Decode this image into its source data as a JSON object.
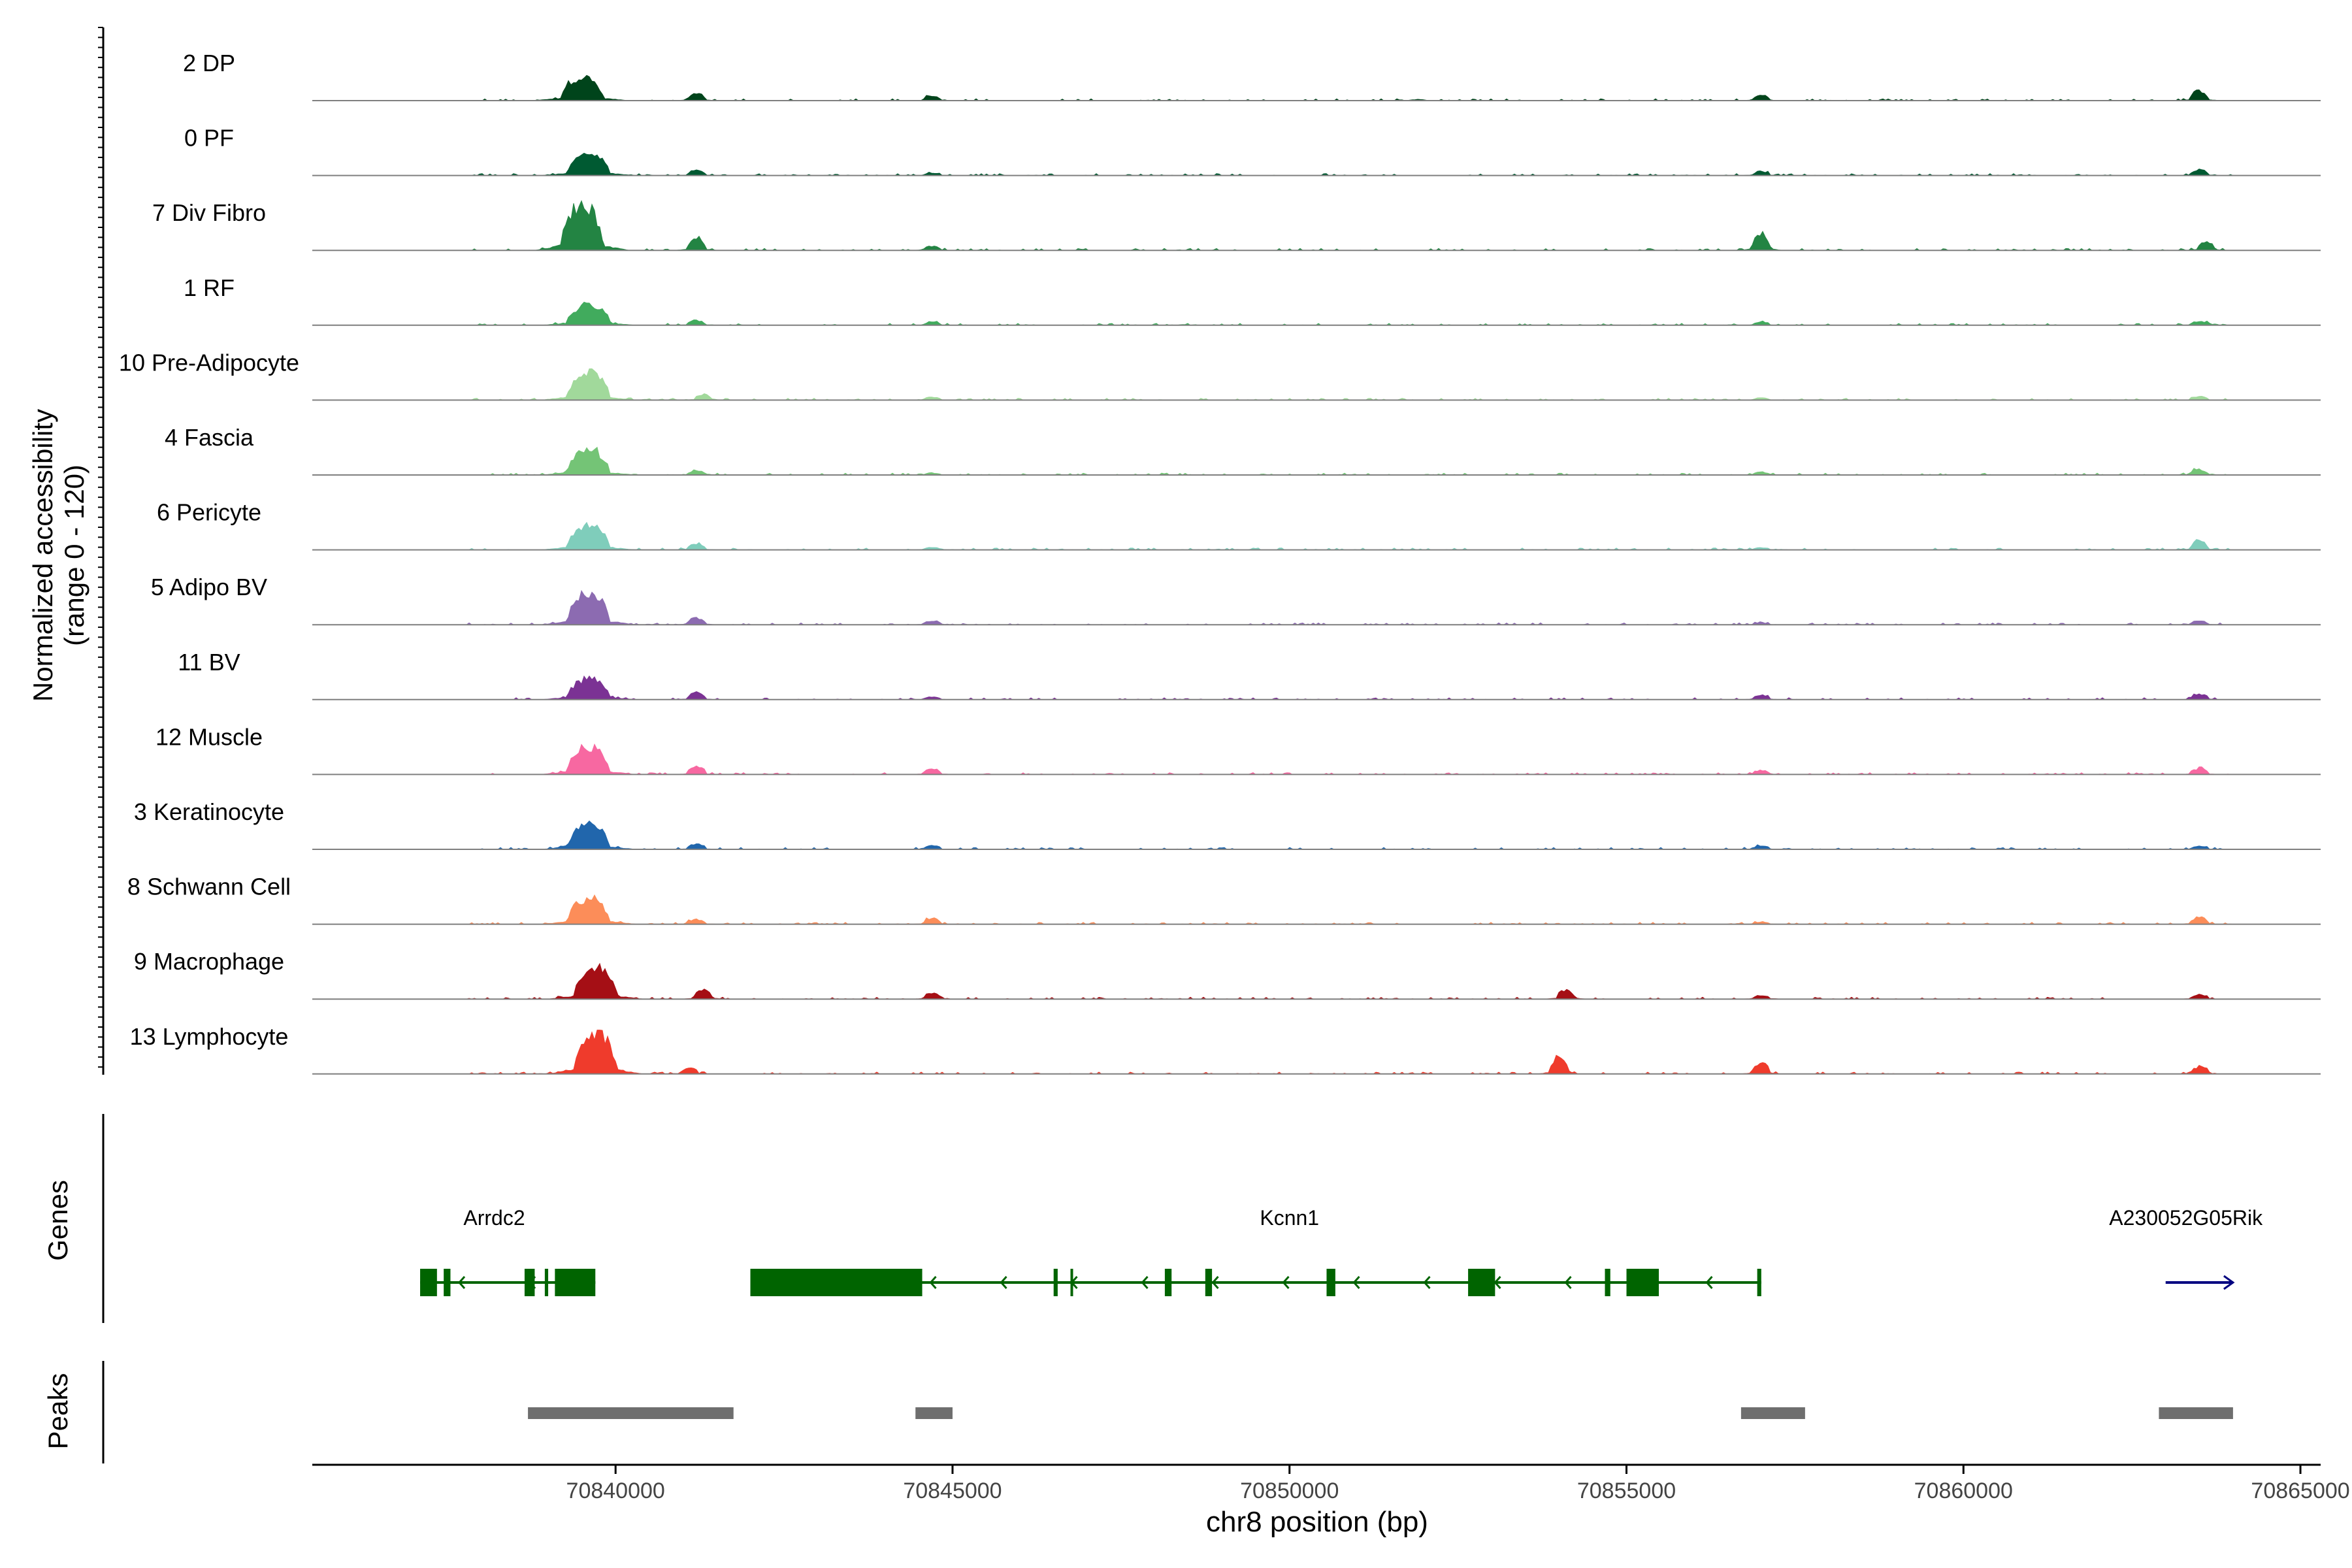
{
  "chart_data": {
    "type": "area",
    "chromosome": "chr8",
    "xlim": [
      70835500,
      70865300
    ],
    "x_ticks": [
      70840000,
      70845000,
      70850000,
      70855000,
      70860000,
      70865000
    ],
    "x_tick_labels": [
      "70840000",
      "70845000",
      "70850000",
      "70855000",
      "70860000",
      "70865000"
    ],
    "xlabel": "chr8 position (bp)",
    "ylabel": "Normalized accessibility",
    "ylabel2": "(range 0 - 120)",
    "ylim": [
      0,
      120
    ],
    "tracks": [
      {
        "name": "2 DP",
        "color": "#00441b",
        "peaks": [
          [
            70839500,
            40
          ],
          [
            70841200,
            12
          ],
          [
            70844700,
            8
          ],
          [
            70851900,
            2
          ],
          [
            70857000,
            10
          ],
          [
            70863500,
            17
          ]
        ]
      },
      {
        "name": "0 PF",
        "color": "#005a32",
        "peaks": [
          [
            70839600,
            36
          ],
          [
            70841200,
            9
          ],
          [
            70844700,
            4
          ],
          [
            70857000,
            7
          ],
          [
            70863500,
            10
          ]
        ]
      },
      {
        "name": "7 Div Fibro",
        "color": "#238443",
        "peaks": [
          [
            70839500,
            78
          ],
          [
            70841200,
            23
          ],
          [
            70844700,
            7
          ],
          [
            70857000,
            28
          ],
          [
            70863600,
            15
          ]
        ]
      },
      {
        "name": "1 RF",
        "color": "#41ab5d",
        "peaks": [
          [
            70839600,
            36
          ],
          [
            70841200,
            8
          ],
          [
            70844700,
            6
          ],
          [
            70857000,
            5
          ],
          [
            70863500,
            7
          ]
        ]
      },
      {
        "name": "10 Pre-Adipocyte",
        "color": "#a1d99b",
        "peaks": [
          [
            70839600,
            50
          ],
          [
            70841300,
            10
          ],
          [
            70844700,
            5
          ],
          [
            70857000,
            4
          ],
          [
            70863500,
            6
          ]
        ]
      },
      {
        "name": "4 Fascia",
        "color": "#74c476",
        "peaks": [
          [
            70839600,
            42
          ],
          [
            70841200,
            8
          ],
          [
            70844700,
            3
          ],
          [
            70857000,
            5
          ],
          [
            70863500,
            9
          ]
        ]
      },
      {
        "name": "6 Pericyte",
        "color": "#7fcdbb",
        "peaks": [
          [
            70839600,
            42
          ],
          [
            70841200,
            10
          ],
          [
            70844700,
            4
          ],
          [
            70857000,
            4
          ],
          [
            70863500,
            15
          ]
        ]
      },
      {
        "name": "5 Adipo BV",
        "color": "#8c6bb1",
        "peaks": [
          [
            70839600,
            55
          ],
          [
            70841200,
            12
          ],
          [
            70844700,
            7
          ],
          [
            70857000,
            3
          ],
          [
            70863500,
            7
          ]
        ]
      },
      {
        "name": "11 BV",
        "color": "#7b3294",
        "peaks": [
          [
            70839600,
            35
          ],
          [
            70841200,
            12
          ],
          [
            70844700,
            5
          ],
          [
            70857000,
            8
          ],
          [
            70863500,
            10
          ]
        ]
      },
      {
        "name": "12 Muscle",
        "color": "#f768a1",
        "peaks": [
          [
            70839600,
            48
          ],
          [
            70841200,
            14
          ],
          [
            70844700,
            10
          ],
          [
            70857000,
            7
          ],
          [
            70863500,
            10
          ]
        ]
      },
      {
        "name": "3 Keratinocyte",
        "color": "#2166ac",
        "peaks": [
          [
            70839600,
            42
          ],
          [
            70841200,
            10
          ],
          [
            70844700,
            6
          ],
          [
            70857000,
            6
          ],
          [
            70863500,
            5
          ]
        ]
      },
      {
        "name": "8 Schwann Cell",
        "color": "#fc8d59",
        "peaks": [
          [
            70839600,
            45
          ],
          [
            70841200,
            8
          ],
          [
            70844700,
            10
          ],
          [
            70857000,
            4
          ],
          [
            70863500,
            12
          ]
        ]
      },
      {
        "name": "9 Macrophage",
        "color": "#a50f15",
        "peaks": [
          [
            70839700,
            55
          ],
          [
            70841300,
            16
          ],
          [
            70844700,
            10
          ],
          [
            70854100,
            16
          ],
          [
            70857000,
            6
          ],
          [
            70863500,
            7
          ]
        ]
      },
      {
        "name": "13 Lymphocyte",
        "color": "#ef3b2c",
        "peaks": [
          [
            70839700,
            70
          ],
          [
            70841100,
            10
          ],
          [
            70854000,
            30
          ],
          [
            70857000,
            18
          ],
          [
            70863500,
            12
          ]
        ]
      }
    ],
    "genes": [
      {
        "name": "Arrdc2",
        "color": "#006400",
        "strand": "-",
        "start": 70837100,
        "end": 70839700,
        "exons": [
          [
            70837100,
            70837350
          ],
          [
            70837450,
            70837550
          ],
          [
            70838650,
            70838800
          ],
          [
            70838950,
            70839000
          ],
          [
            70839100,
            70839700
          ]
        ]
      },
      {
        "name": "Kcnn1",
        "color": "#006400",
        "strand": "-",
        "start": 70842000,
        "end": 70857000,
        "exons": [
          [
            70842000,
            70844550
          ],
          [
            70846500,
            70846560
          ],
          [
            70846750,
            70846770
          ],
          [
            70848150,
            70848250
          ],
          [
            70848750,
            70848850
          ],
          [
            70850550,
            70850680
          ],
          [
            70852650,
            70853050
          ],
          [
            70854680,
            70854760
          ],
          [
            70855000,
            70855480
          ],
          [
            70856940,
            70857000
          ]
        ]
      },
      {
        "name": "A230052G05Rik",
        "color": "#000080",
        "strand": "+",
        "start": 70863000,
        "end": 70864000,
        "exons": []
      }
    ],
    "peak_regions": [
      [
        70838700,
        70841750
      ],
      [
        70844450,
        70845000
      ],
      [
        70856700,
        70857650
      ],
      [
        70862900,
        70864000
      ]
    ],
    "panel_labels": {
      "genes": "Genes",
      "peaks": "Peaks"
    }
  }
}
